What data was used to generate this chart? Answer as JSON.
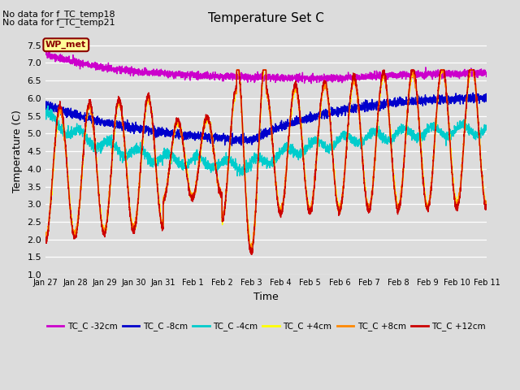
{
  "title": "Temperature Set C",
  "xlabel": "Time",
  "ylabel": "Temperature (C)",
  "annotation_lines": [
    "No data for f_TC_temp18",
    "No data for f_TC_temp21"
  ],
  "wp_met_label": "WP_met",
  "ylim": [
    1.0,
    8.0
  ],
  "yticks": [
    1.0,
    1.5,
    2.0,
    2.5,
    3.0,
    3.5,
    4.0,
    4.5,
    5.0,
    5.5,
    6.0,
    6.5,
    7.0,
    7.5
  ],
  "bg_color": "#dcdcdc",
  "plot_bg_color": "#dcdcdc",
  "series": [
    {
      "label": "TC_C -32cm",
      "color": "#cc00cc",
      "lw": 1.0
    },
    {
      "label": "TC_C -8cm",
      "color": "#0000cc",
      "lw": 1.0
    },
    {
      "label": "TC_C -4cm",
      "color": "#00cccc",
      "lw": 1.0
    },
    {
      "label": "TC_C +4cm",
      "color": "#ffff00",
      "lw": 1.0
    },
    {
      "label": "TC_C +8cm",
      "color": "#ff8800",
      "lw": 1.0
    },
    {
      "label": "TC_C +12cm",
      "color": "#cc0000",
      "lw": 1.0
    }
  ],
  "legend_ncol": 6,
  "n_points": 3360,
  "xtick_positions": [
    0,
    1,
    2,
    3,
    4,
    5,
    6,
    7,
    8,
    9,
    10,
    11,
    12,
    13,
    14,
    15
  ],
  "xtick_labels": [
    "Jan 27",
    "Jan 28",
    "Jan 29",
    "Jan 30",
    "Jan 31",
    "Feb 1",
    "Feb 2",
    "Feb 3",
    "Feb 4",
    "Feb 5",
    "Feb 6",
    "Feb 7",
    "Feb 8",
    "Feb 9",
    "Feb 10",
    "Feb 11"
  ]
}
